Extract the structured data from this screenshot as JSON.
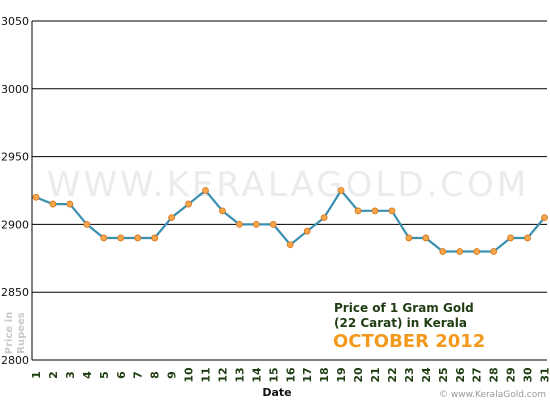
{
  "chart_data": {
    "type": "line",
    "title_line1": "Price of 1 Gram Gold",
    "title_line2": "(22 Carat) in Kerala",
    "subtitle": "OCTOBER 2012",
    "xlabel": "Date",
    "ylabel_line1": "Price in",
    "ylabel_line2": "Rupees",
    "watermark": "WWW.KERALAGOLD.COM",
    "credit": "© www.KeralaGold.com",
    "ylim": [
      2800,
      3050
    ],
    "yticks": [
      2800,
      2850,
      2900,
      2950,
      3000,
      3050
    ],
    "x": [
      1,
      2,
      3,
      4,
      5,
      6,
      7,
      8,
      9,
      10,
      11,
      12,
      13,
      14,
      15,
      16,
      17,
      18,
      19,
      20,
      21,
      22,
      23,
      24,
      25,
      26,
      27,
      28,
      29,
      30,
      31
    ],
    "values": [
      2920,
      2915,
      2915,
      2900,
      2890,
      2890,
      2890,
      2890,
      2905,
      2915,
      2925,
      2910,
      2900,
      2900,
      2900,
      2885,
      2895,
      2905,
      2925,
      2910,
      2910,
      2910,
      2890,
      2890,
      2880,
      2880,
      2880,
      2880,
      2890,
      2890,
      2905
    ],
    "grid": "horizontal",
    "colors": {
      "line": "#3a8fb0",
      "marker": "#f5a64a",
      "marker_edge": "#d5741a",
      "grid": "#000000"
    }
  }
}
